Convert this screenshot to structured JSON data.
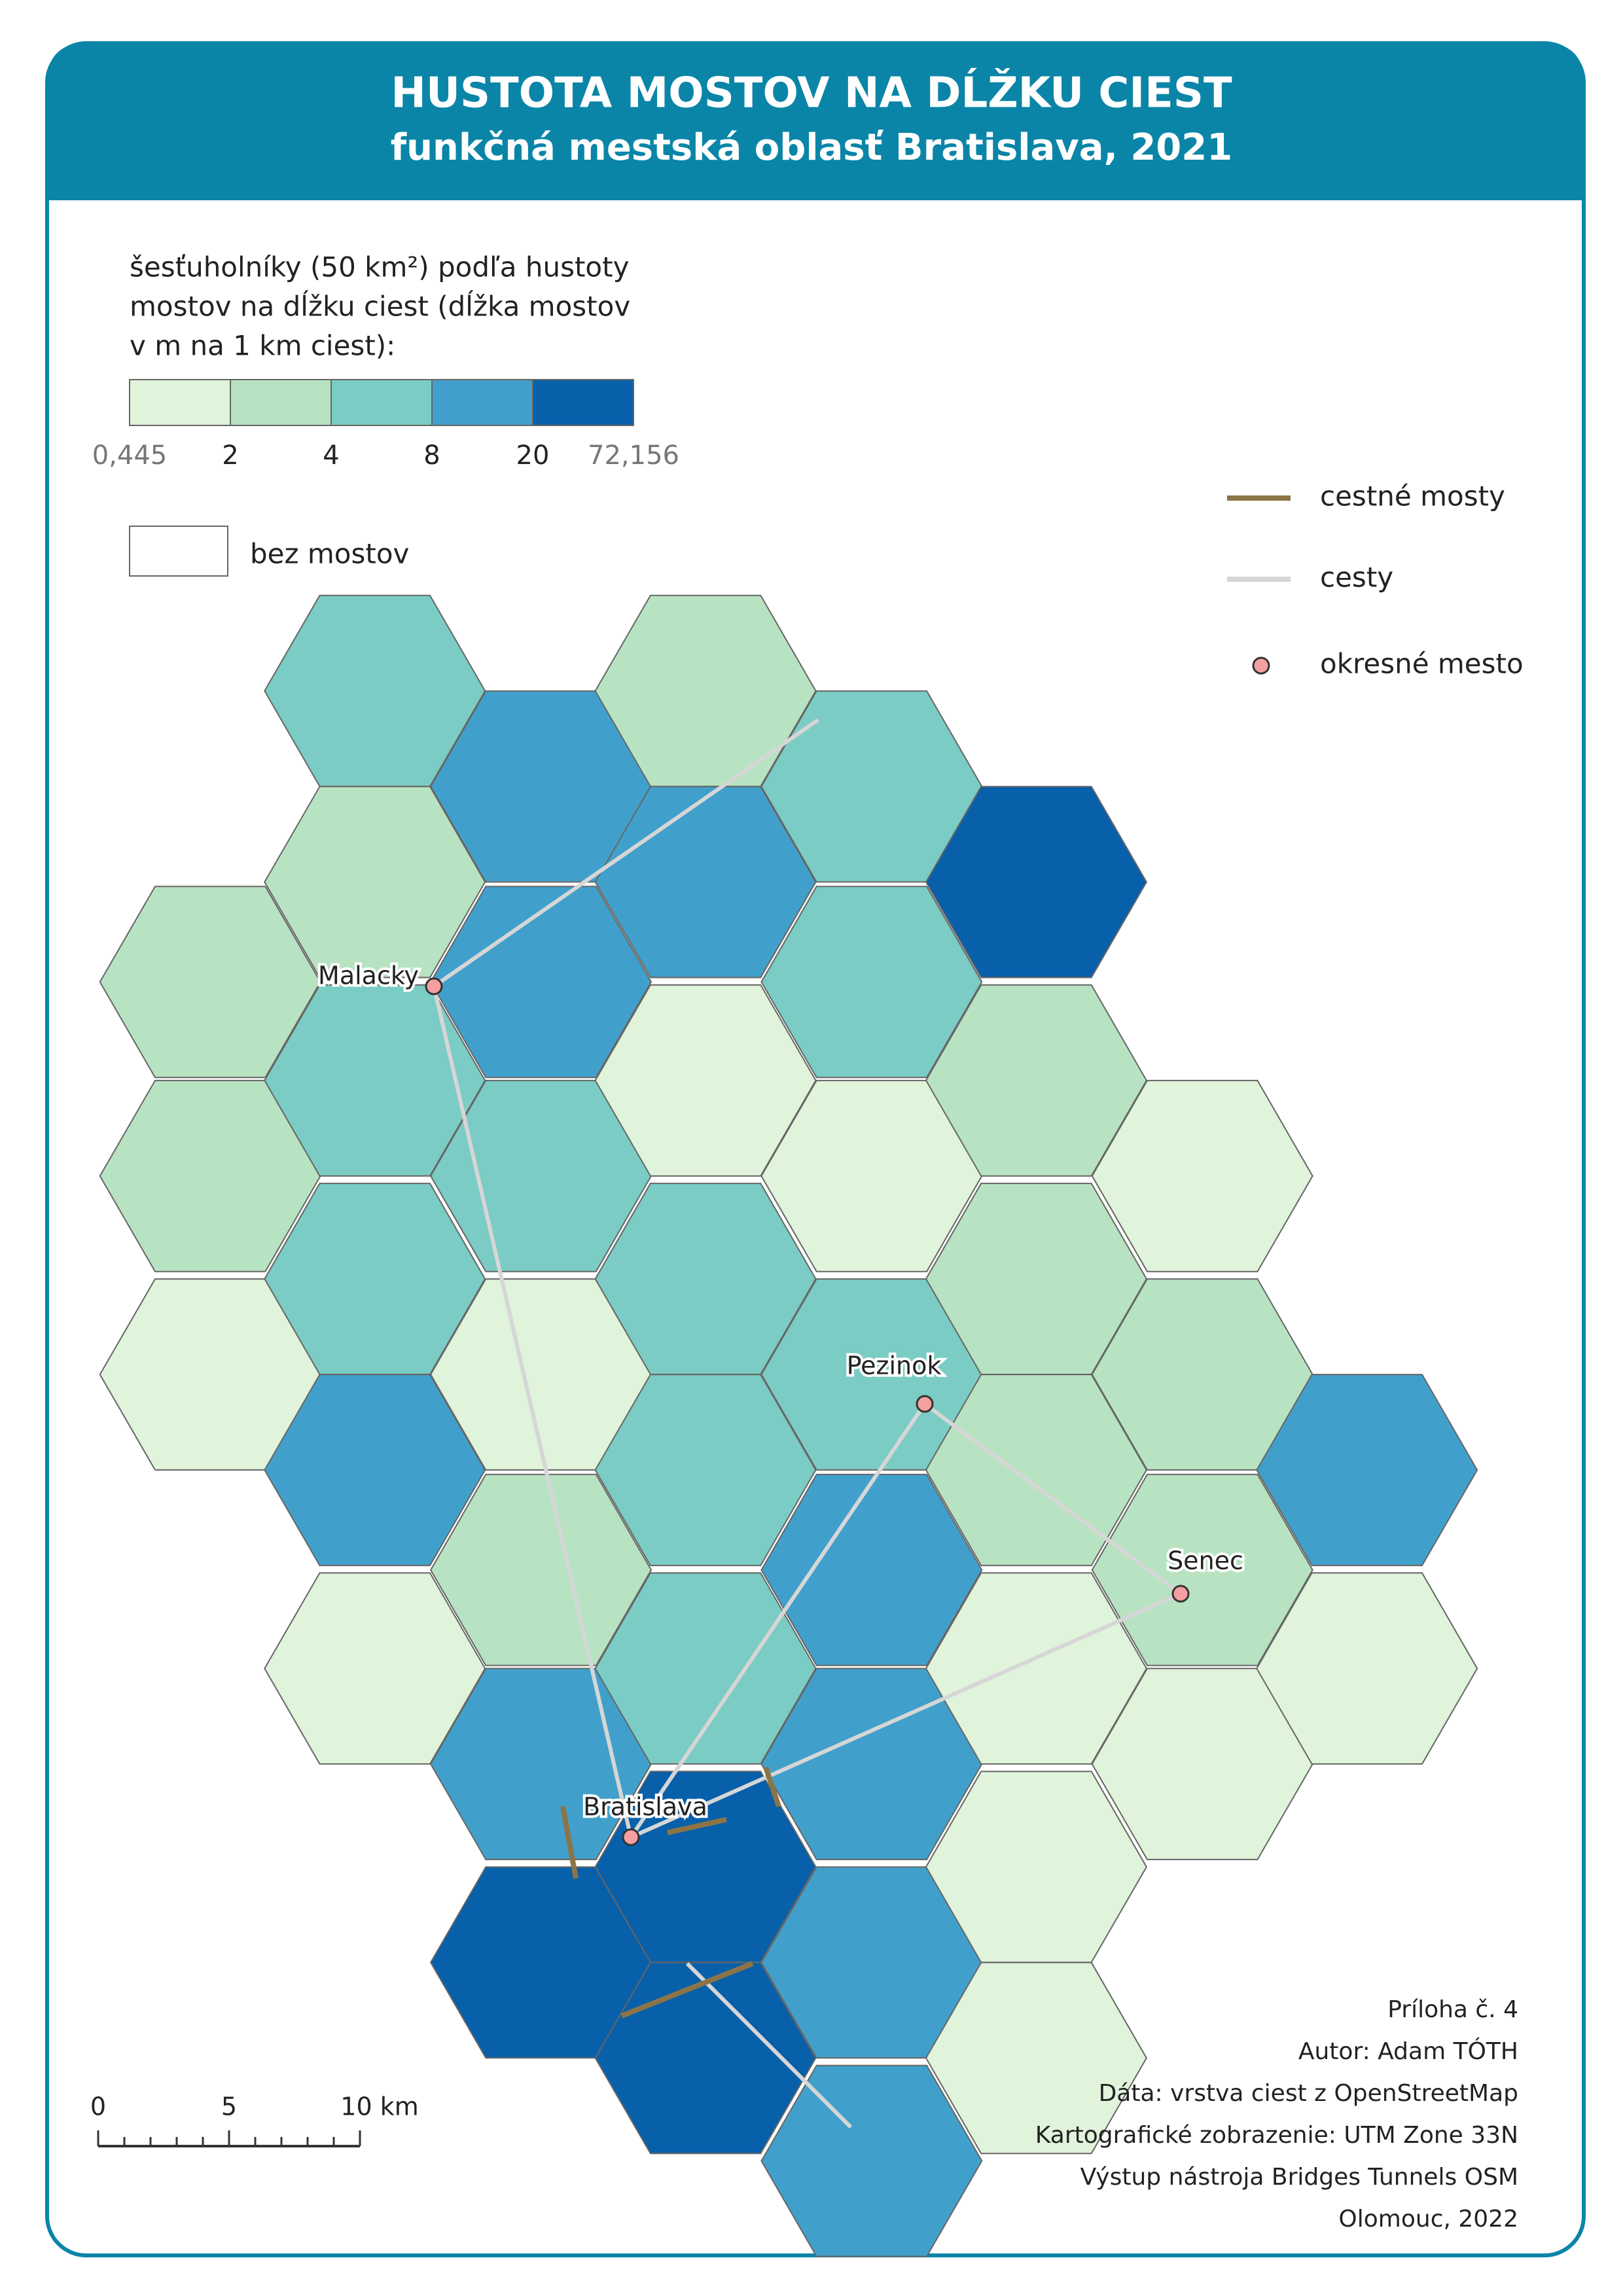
{
  "header": {
    "title": "HUSTOTA MOSTOV NA DĹŽKU CIEST",
    "subtitle": "funkčná mestská oblasť Bratislava, 2021"
  },
  "legend": {
    "title_lines": [
      "šesťuholníky (50 km²) podľa hustoty",
      "mostov na dĺžku ciest (dĺžka mostov",
      "v m na 1 km ciest):"
    ],
    "colors": [
      "#e0f3db",
      "#b8e3c2",
      "#7bccc4",
      "#41a0cb",
      "#0860aa"
    ],
    "breaks": [
      "0,445",
      "2",
      "4",
      "8",
      "20",
      "72,156"
    ],
    "no_bridges": "bez mostov",
    "items": [
      {
        "label": "cestné mosty",
        "color": "#8c7447"
      },
      {
        "label": "cesty",
        "color": "#d6d6d6"
      },
      {
        "label": "okresné mesto",
        "color": "#f4a0a0"
      }
    ]
  },
  "cities": [
    {
      "name": "Malacky"
    },
    {
      "name": "Pezinok"
    },
    {
      "name": "Senec"
    },
    {
      "name": "Bratislava"
    }
  ],
  "scale": [
    "0",
    "5",
    "10 km"
  ],
  "footer": [
    "Príloha č. 4",
    "Autor: Adam TÓTH",
    "Dáta: vrstva ciest z OpenStreetMap",
    "Kartografické zobrazenie: UTM Zone 33N",
    "Výstup nástroja Bridges Tunnels OSM",
    "Olomouc, 2022"
  ]
}
